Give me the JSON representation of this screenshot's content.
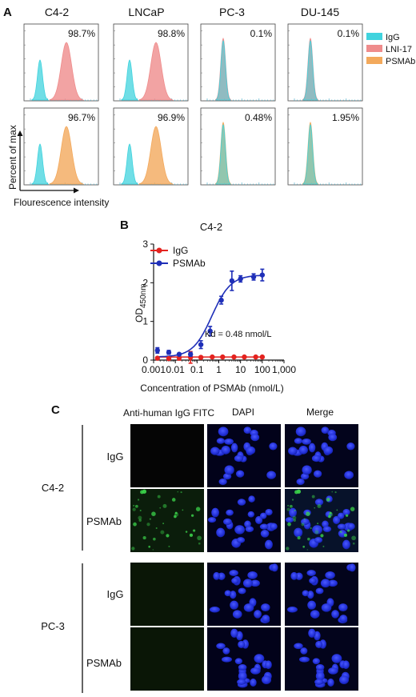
{
  "panel_a": {
    "letter": "A",
    "columns": [
      "C4-2",
      "LNCaP",
      "PC-3",
      "DU-145"
    ],
    "legend": [
      {
        "label": "IgG",
        "color": "#40d3de"
      },
      {
        "label": "LNI-17",
        "color": "#ef8c8c"
      },
      {
        "label": "PSMAb",
        "color": "#f3a95c"
      }
    ],
    "rows": [
      {
        "compare": "LNI-17",
        "percents": [
          "98.7%",
          "98.8%",
          "0.1%",
          "0.1%"
        ],
        "shifted": [
          true,
          true,
          false,
          false
        ]
      },
      {
        "compare": "PSMAb",
        "percents": [
          "96.7%",
          "96.9%",
          "0.48%",
          "1.95%"
        ],
        "shifted": [
          true,
          true,
          false,
          false
        ]
      }
    ],
    "y_axis_label": "Percent of max",
    "x_axis_label": "Flourescence intensity"
  },
  "panel_b": {
    "letter": "B",
    "annotation": "Kd = 0.48 nmol/L",
    "colors": {
      "IgG": "#e4231f",
      "PSMAb": "#1f2fb8"
    }
  },
  "chart_data": {
    "type": "scatter",
    "title": "C4-2",
    "xlabel": "Concentration of PSMAb (nmol/L)",
    "ylabel_main": "OD",
    "ylabel_sub": "450nm",
    "xscale": "log",
    "xlim": [
      0.001,
      1000
    ],
    "ylim": [
      0,
      3
    ],
    "xticks": [
      "0.001",
      "0.01",
      "0.1",
      "1",
      "10",
      "100",
      "1,000"
    ],
    "yticks": [
      "0",
      "1",
      "2",
      "3"
    ],
    "legend_position": "top-left",
    "series": [
      {
        "name": "IgG",
        "x": [
          0.0015,
          0.005,
          0.015,
          0.05,
          0.15,
          0.5,
          1.5,
          5,
          15,
          50,
          100
        ],
        "y": [
          0.05,
          0.04,
          0.06,
          0.07,
          0.07,
          0.08,
          0.08,
          0.08,
          0.08,
          0.08,
          0.08
        ],
        "err": [
          0.03,
          0.03,
          0.06,
          0.15,
          0.03,
          0.02,
          0.02,
          0.02,
          0.02,
          0.02,
          0.02
        ]
      },
      {
        "name": "PSMAb",
        "x": [
          0.0015,
          0.005,
          0.015,
          0.05,
          0.15,
          0.4,
          1.3,
          4,
          10,
          40,
          100
        ],
        "y": [
          0.25,
          0.2,
          0.15,
          0.15,
          0.4,
          0.75,
          1.55,
          2.05,
          2.1,
          2.15,
          2.2
        ],
        "err": [
          0.07,
          0.05,
          0.03,
          0.05,
          0.1,
          0.12,
          0.1,
          0.25,
          0.08,
          0.08,
          0.15
        ]
      }
    ],
    "fit": {
      "series": "PSMAb",
      "bottom": 0.08,
      "top": 2.2,
      "ec50": 0.48,
      "hill": 1
    }
  },
  "panel_c": {
    "letter": "C",
    "headers": [
      "Anti-human IgG FITC",
      "DAPI",
      "Merge"
    ],
    "groups": [
      {
        "label": "C4-2",
        "rows": [
          "IgG",
          "PSMAb"
        ]
      },
      {
        "label": "PC-3",
        "rows": [
          "IgG",
          "PSMAb"
        ]
      }
    ]
  }
}
